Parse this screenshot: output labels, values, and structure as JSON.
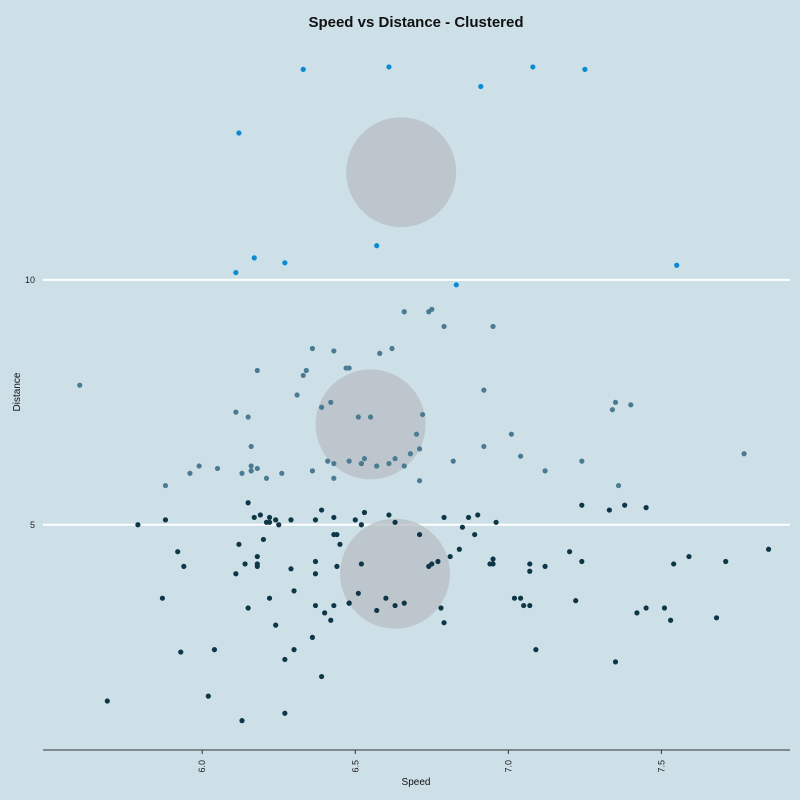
{
  "chart_data": {
    "type": "scatter",
    "title": "Speed vs Distance - Clustered",
    "xlabel": "Speed",
    "ylabel": "Distance",
    "xlim": [
      5.48,
      7.92
    ],
    "ylim": [
      0.4,
      14.9
    ],
    "x_ticks": [
      "6.0",
      "6.5",
      "7.0",
      "7.5"
    ],
    "y_ticks": [
      "5",
      "10"
    ],
    "grid": "horizontal lines at y ticks",
    "colors": {
      "background": "#cde0e8",
      "gridline": "#ffffff",
      "axis": "#333333",
      "centroid": "#b8bec4"
    },
    "series": [
      {
        "color": "#0b8ad4",
        "points": [
          [
            6.33,
            14.3
          ],
          [
            6.61,
            14.35
          ],
          [
            7.08,
            14.35
          ],
          [
            7.25,
            14.3
          ],
          [
            6.91,
            13.95
          ],
          [
            6.12,
            13.0
          ],
          [
            6.57,
            10.7
          ],
          [
            6.17,
            10.45
          ],
          [
            6.27,
            10.35
          ],
          [
            6.11,
            10.15
          ],
          [
            7.55,
            10.3
          ],
          [
            6.83,
            9.9
          ]
        ]
      },
      {
        "color": "#4a7b92",
        "points": [
          [
            5.6,
            7.85
          ],
          [
            6.66,
            9.35
          ],
          [
            6.75,
            9.4
          ],
          [
            6.74,
            9.35
          ],
          [
            6.79,
            9.05
          ],
          [
            6.95,
            9.05
          ],
          [
            6.36,
            8.6
          ],
          [
            6.43,
            8.55
          ],
          [
            6.58,
            8.5
          ],
          [
            6.62,
            8.6
          ],
          [
            6.34,
            8.15
          ],
          [
            6.18,
            8.15
          ],
          [
            6.47,
            8.2
          ],
          [
            6.48,
            8.2
          ],
          [
            6.33,
            8.05
          ],
          [
            6.42,
            7.5
          ],
          [
            6.39,
            7.4
          ],
          [
            6.31,
            7.65
          ],
          [
            6.11,
            7.3
          ],
          [
            6.15,
            7.2
          ],
          [
            6.51,
            7.2
          ],
          [
            6.55,
            7.2
          ],
          [
            6.72,
            7.25
          ],
          [
            6.92,
            7.75
          ],
          [
            7.34,
            7.35
          ],
          [
            7.35,
            7.5
          ],
          [
            7.4,
            7.45
          ],
          [
            6.7,
            6.85
          ],
          [
            6.71,
            6.55
          ],
          [
            6.68,
            6.45
          ],
          [
            6.92,
            6.6
          ],
          [
            7.01,
            6.85
          ],
          [
            7.04,
            6.4
          ],
          [
            7.12,
            6.1
          ],
          [
            7.24,
            6.3
          ],
          [
            7.77,
            6.45
          ],
          [
            6.16,
            6.6
          ],
          [
            6.16,
            6.2
          ],
          [
            6.18,
            6.15
          ],
          [
            6.16,
            6.1
          ],
          [
            6.13,
            6.05
          ],
          [
            6.21,
            5.95
          ],
          [
            6.26,
            6.05
          ],
          [
            6.05,
            6.15
          ],
          [
            5.99,
            6.2
          ],
          [
            5.96,
            6.05
          ],
          [
            5.88,
            5.8
          ],
          [
            6.36,
            6.1
          ],
          [
            6.41,
            6.3
          ],
          [
            6.43,
            6.25
          ],
          [
            6.43,
            5.95
          ],
          [
            6.52,
            6.25
          ],
          [
            6.53,
            6.35
          ],
          [
            6.48,
            6.3
          ],
          [
            6.57,
            6.2
          ],
          [
            6.63,
            6.35
          ],
          [
            6.61,
            6.25
          ],
          [
            6.66,
            6.2
          ],
          [
            6.71,
            5.9
          ],
          [
            6.82,
            6.3
          ],
          [
            7.36,
            5.8
          ],
          [
            6.52,
            6.25
          ]
        ]
      },
      {
        "color": "#0f3646",
        "points": [
          [
            5.79,
            5.0
          ],
          [
            5.88,
            5.1
          ],
          [
            6.15,
            5.45
          ],
          [
            6.17,
            5.15
          ],
          [
            6.19,
            5.2
          ],
          [
            6.22,
            5.15
          ],
          [
            6.24,
            5.1
          ],
          [
            6.25,
            5.0
          ],
          [
            6.22,
            5.05
          ],
          [
            6.29,
            5.1
          ],
          [
            6.37,
            5.1
          ],
          [
            6.39,
            5.3
          ],
          [
            6.43,
            5.15
          ],
          [
            6.5,
            5.1
          ],
          [
            6.53,
            5.25
          ],
          [
            6.61,
            5.2
          ],
          [
            6.52,
            5.0
          ],
          [
            6.63,
            5.05
          ],
          [
            6.79,
            5.15
          ],
          [
            6.85,
            4.95
          ],
          [
            6.87,
            5.15
          ],
          [
            6.9,
            5.2
          ],
          [
            6.96,
            5.05
          ],
          [
            7.24,
            5.4
          ],
          [
            7.33,
            5.3
          ],
          [
            7.38,
            5.4
          ],
          [
            7.45,
            5.35
          ],
          [
            6.2,
            4.7
          ],
          [
            6.12,
            4.6
          ],
          [
            6.18,
            4.35
          ],
          [
            6.14,
            4.2
          ],
          [
            6.18,
            4.2
          ],
          [
            6.18,
            4.15
          ],
          [
            6.11,
            4.0
          ],
          [
            6.21,
            5.05
          ],
          [
            6.44,
            4.8
          ],
          [
            6.43,
            4.8
          ],
          [
            6.45,
            4.6
          ],
          [
            6.52,
            4.2
          ],
          [
            6.44,
            4.15
          ],
          [
            6.37,
            4.25
          ],
          [
            6.37,
            4.0
          ],
          [
            6.29,
            4.1
          ],
          [
            6.71,
            4.8
          ],
          [
            6.74,
            4.15
          ],
          [
            6.75,
            4.2
          ],
          [
            6.77,
            4.25
          ],
          [
            6.81,
            4.35
          ],
          [
            6.84,
            4.5
          ],
          [
            6.89,
            4.8
          ],
          [
            6.94,
            4.2
          ],
          [
            6.95,
            4.3
          ],
          [
            6.95,
            4.2
          ],
          [
            7.07,
            4.2
          ],
          [
            7.07,
            4.05
          ],
          [
            7.12,
            4.15
          ],
          [
            7.2,
            4.45
          ],
          [
            7.24,
            4.25
          ],
          [
            7.54,
            4.2
          ],
          [
            7.59,
            4.35
          ],
          [
            7.71,
            4.25
          ],
          [
            7.85,
            4.5
          ],
          [
            5.92,
            4.45
          ],
          [
            5.94,
            4.15
          ],
          [
            5.87,
            3.5
          ],
          [
            6.15,
            3.3
          ],
          [
            6.22,
            3.5
          ],
          [
            6.3,
            3.65
          ],
          [
            6.37,
            3.35
          ],
          [
            6.4,
            3.2
          ],
          [
            6.43,
            3.35
          ],
          [
            6.42,
            3.05
          ],
          [
            6.48,
            3.4
          ],
          [
            6.48,
            3.4
          ],
          [
            6.51,
            3.6
          ],
          [
            6.57,
            3.25
          ],
          [
            6.6,
            3.5
          ],
          [
            6.63,
            3.35
          ],
          [
            6.66,
            3.4
          ],
          [
            6.78,
            3.3
          ],
          [
            6.79,
            3.0
          ],
          [
            7.02,
            3.5
          ],
          [
            7.04,
            3.5
          ],
          [
            7.05,
            3.35
          ],
          [
            7.07,
            3.35
          ],
          [
            7.22,
            3.45
          ],
          [
            7.42,
            3.2
          ],
          [
            7.45,
            3.3
          ],
          [
            7.51,
            3.3
          ],
          [
            7.53,
            3.05
          ],
          [
            7.68,
            3.1
          ],
          [
            6.24,
            2.95
          ],
          [
            6.36,
            2.7
          ],
          [
            6.3,
            2.45
          ],
          [
            6.27,
            2.25
          ],
          [
            6.04,
            2.45
          ],
          [
            5.93,
            2.4
          ],
          [
            7.09,
            2.45
          ],
          [
            7.35,
            2.2
          ],
          [
            6.39,
            1.9
          ],
          [
            6.02,
            1.5
          ],
          [
            5.69,
            1.4
          ],
          [
            6.27,
            1.15
          ],
          [
            6.13,
            1.0
          ]
        ]
      }
    ],
    "centroids": [
      {
        "x": 6.65,
        "y": 12.2
      },
      {
        "x": 6.55,
        "y": 7.05
      },
      {
        "x": 6.63,
        "y": 4.0
      }
    ]
  }
}
